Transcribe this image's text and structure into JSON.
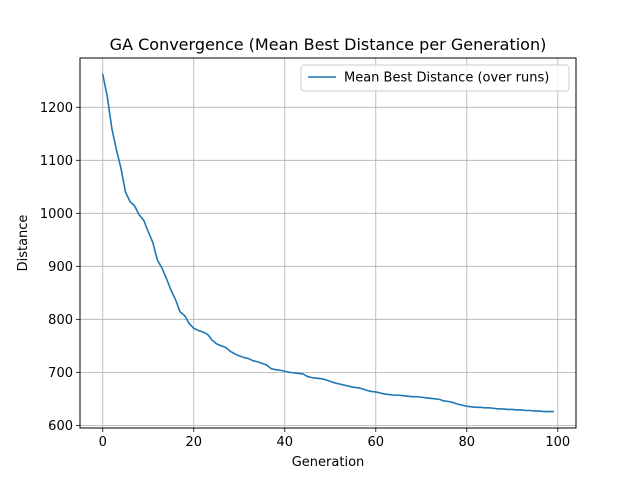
{
  "chart_data": {
    "type": "line",
    "title": "GA Convergence (Mean Best Distance per Generation)",
    "xlabel": "Generation",
    "ylabel": "Distance",
    "xlim": [
      -5,
      104
    ],
    "ylim": [
      595,
      1293
    ],
    "xticks": [
      0,
      20,
      40,
      60,
      80,
      100
    ],
    "yticks": [
      600,
      700,
      800,
      900,
      1000,
      1100,
      1200
    ],
    "grid": true,
    "legend_position": "top-right",
    "series_color": "#1f77b4",
    "series": [
      {
        "name": "Mean Best Distance (over runs)",
        "x": [
          0,
          1,
          2,
          3,
          4,
          5,
          6,
          7,
          8,
          9,
          10,
          11,
          12,
          13,
          14,
          15,
          16,
          17,
          18,
          19,
          20,
          21,
          22,
          23,
          24,
          25,
          26,
          27,
          28,
          29,
          30,
          31,
          32,
          33,
          34,
          35,
          36,
          37,
          38,
          39,
          40,
          41,
          42,
          43,
          44,
          45,
          46,
          47,
          48,
          49,
          50,
          51,
          52,
          53,
          54,
          55,
          56,
          57,
          58,
          59,
          60,
          61,
          62,
          63,
          64,
          65,
          66,
          67,
          68,
          69,
          70,
          71,
          72,
          73,
          74,
          75,
          76,
          77,
          78,
          79,
          80,
          81,
          82,
          83,
          84,
          85,
          86,
          87,
          88,
          89,
          90,
          91,
          92,
          93,
          94,
          95,
          96,
          97,
          98,
          99
        ],
        "values": [
          1262,
          1220,
          1160,
          1120,
          1085,
          1040,
          1022,
          1014,
          997,
          987,
          965,
          945,
          912,
          897,
          877,
          855,
          837,
          814,
          807,
          792,
          783,
          779,
          776,
          772,
          761,
          754,
          750,
          747,
          740,
          735,
          731,
          728,
          726,
          722,
          720,
          717,
          714,
          707,
          705,
          704,
          702,
          700,
          699,
          698,
          697,
          692,
          690,
          689,
          688,
          686,
          683,
          680,
          678,
          676,
          674,
          672,
          671,
          669,
          666,
          664,
          663,
          661,
          659,
          658,
          657,
          657,
          656,
          655,
          654,
          654,
          653,
          652,
          651,
          650,
          649,
          646,
          645,
          643,
          640,
          638,
          636,
          635,
          634,
          634,
          633,
          633,
          632,
          631,
          631,
          630,
          630,
          629,
          629,
          628,
          628,
          627,
          627,
          626,
          626,
          626
        ]
      }
    ]
  }
}
